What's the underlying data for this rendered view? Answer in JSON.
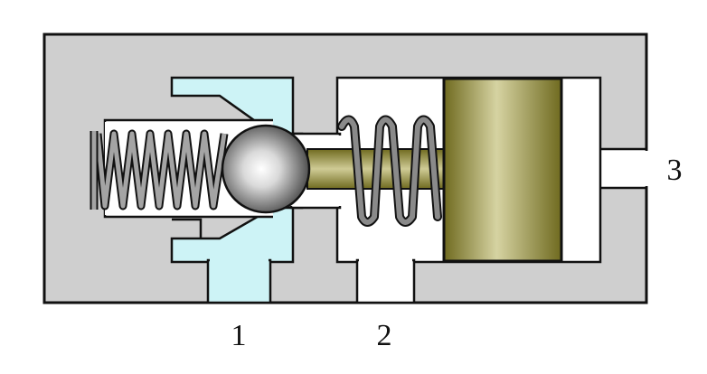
{
  "labels": {
    "port_1": "1",
    "port_2": "2",
    "port_3": "3"
  },
  "colors": {
    "body": "#cfcfcf",
    "outline": "#111111",
    "seat_insert": "#cdf3f6",
    "cavity": "#ffffff",
    "piston": "#8c8530",
    "piston_highlight": "#d3cf9c",
    "spring": "#8a8a8a",
    "ball_light": "#ffffff",
    "ball_dark": "#3a3a3a"
  },
  "parts": {
    "housing": "valve-housing",
    "ball": "ball-icon",
    "left_spring": "spring-icon",
    "right_spring": "spring-icon",
    "piston": "piston-icon"
  }
}
